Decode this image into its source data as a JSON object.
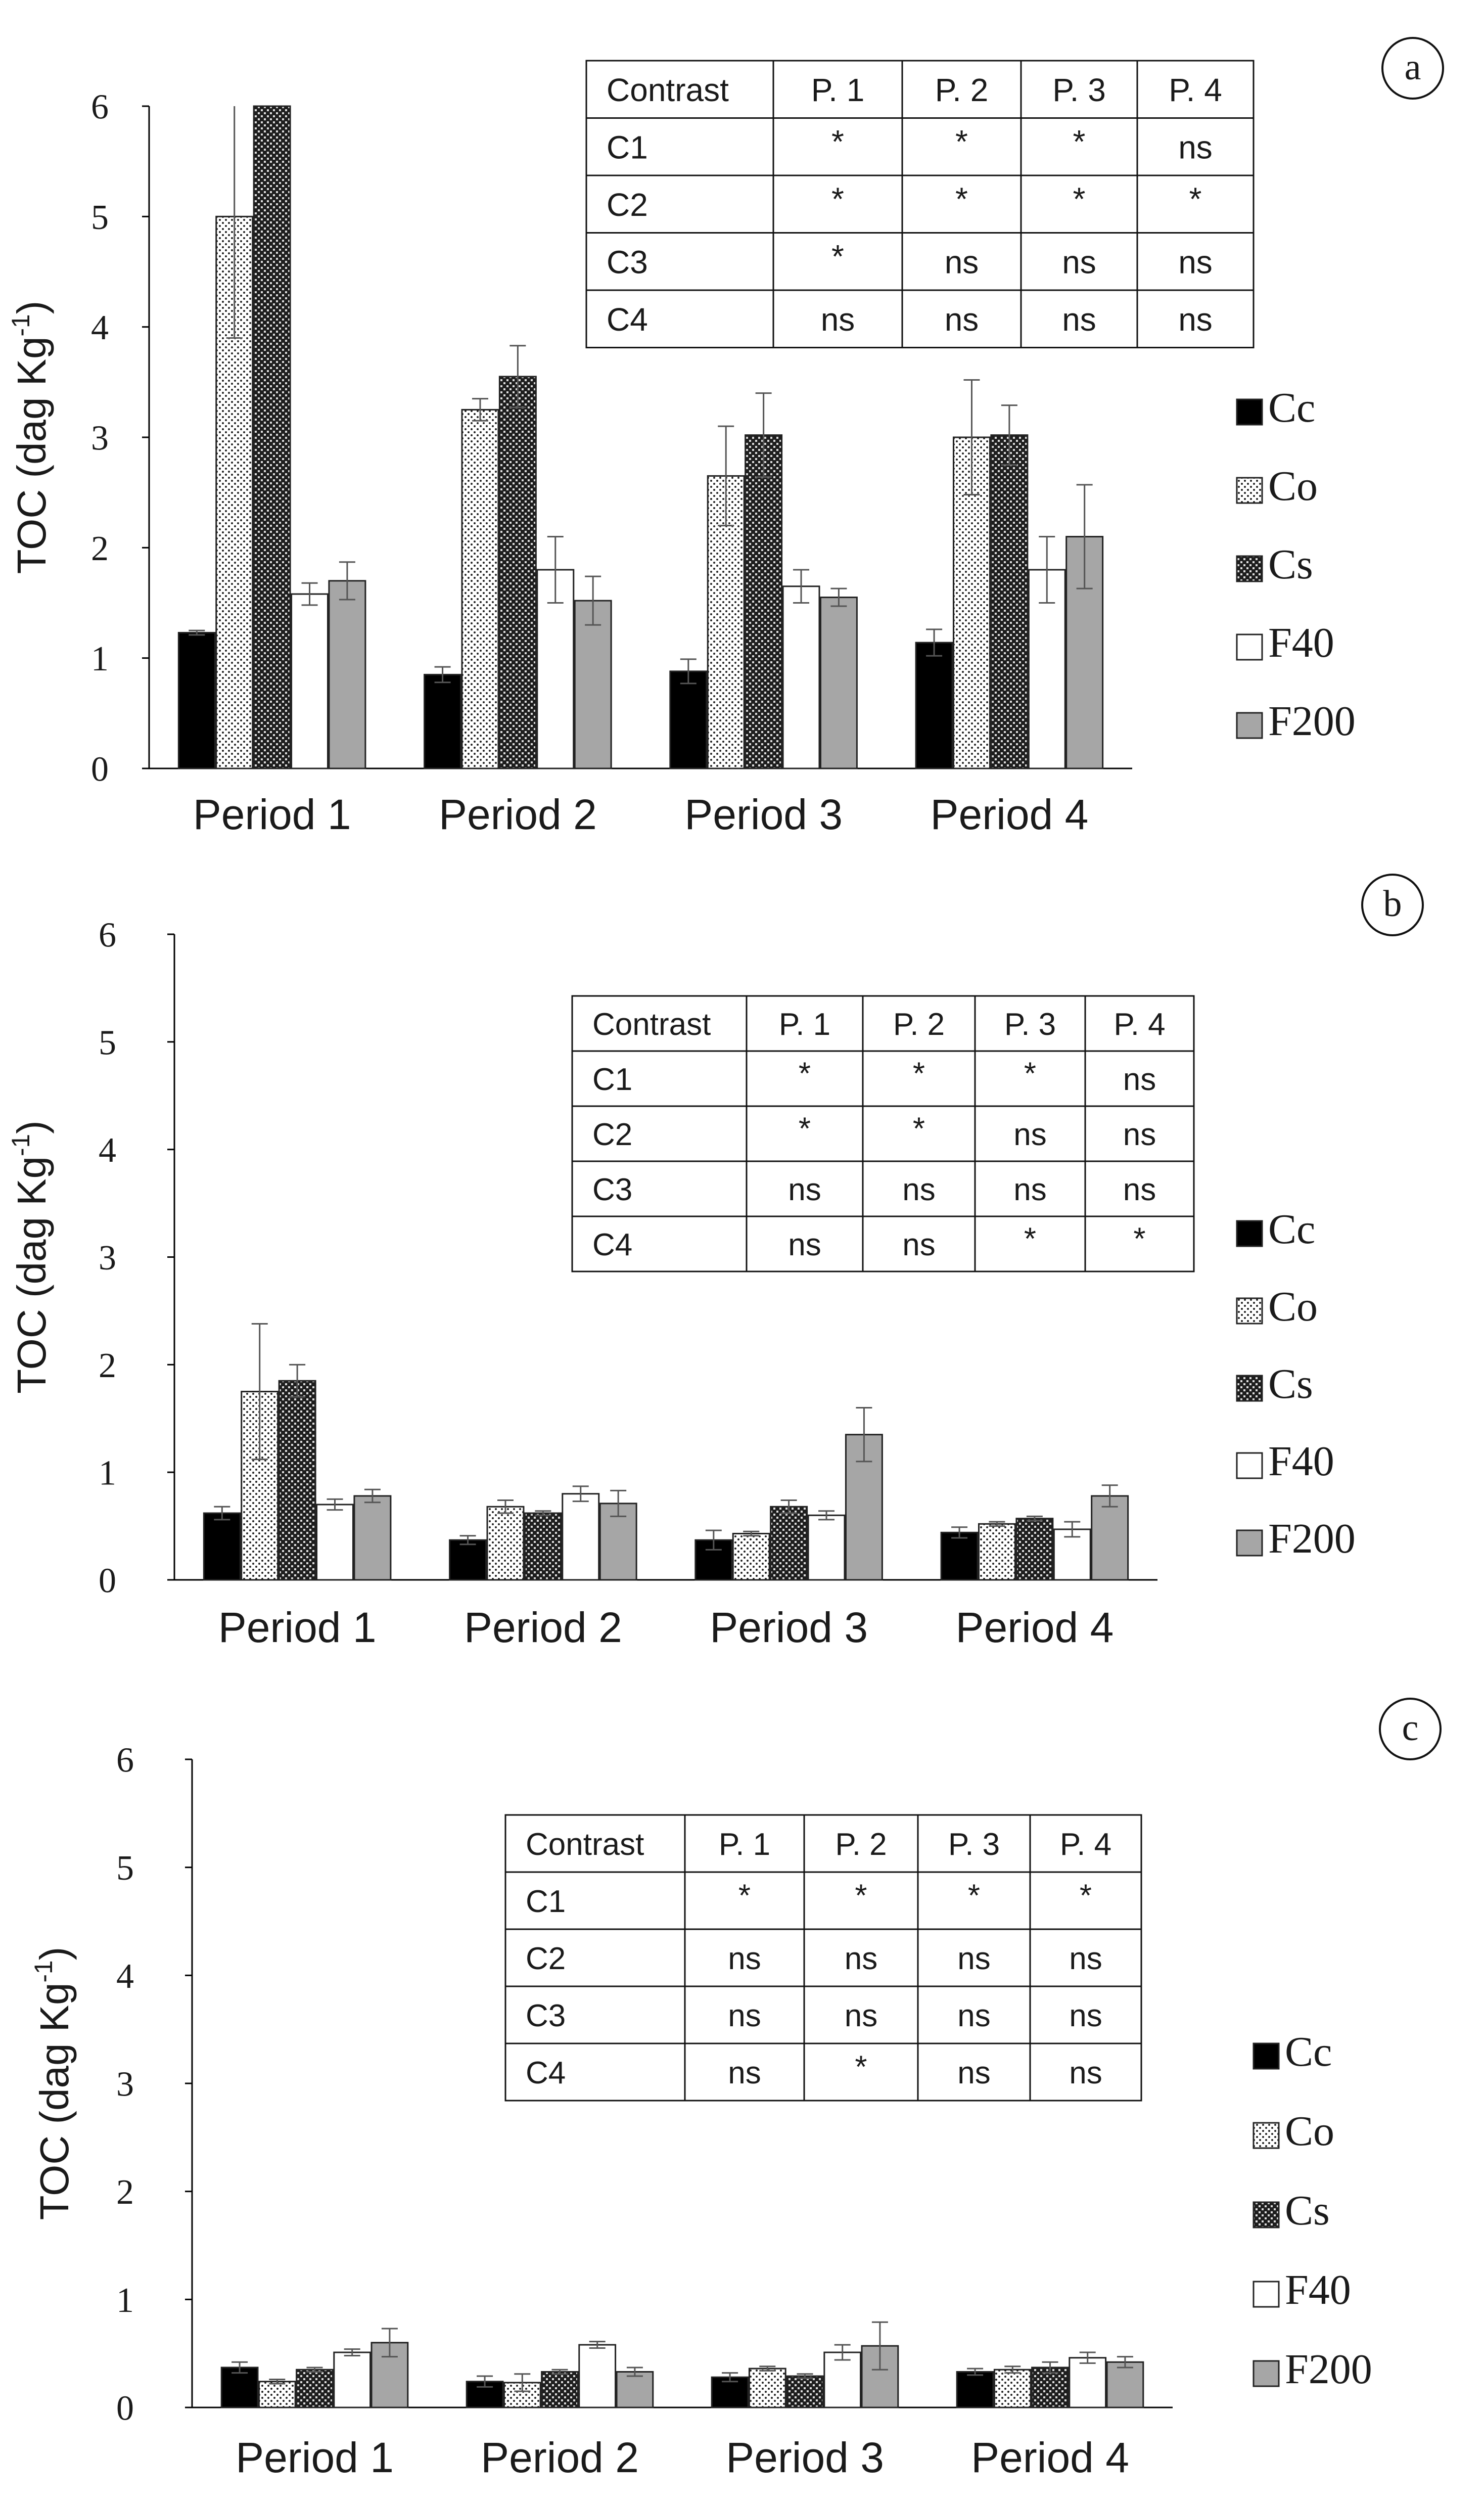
{
  "figure": {
    "ylabel_main": "TOC (dag Kg",
    "ylabel_sup": "-1",
    "legend": [
      {
        "name": "Cc",
        "pattern": "solid-black"
      },
      {
        "name": "Co",
        "pattern": "dotted"
      },
      {
        "name": "Cs",
        "pattern": "checker"
      },
      {
        "name": "F40",
        "pattern": "white"
      },
      {
        "name": "F200",
        "pattern": "gray"
      }
    ],
    "colors": {
      "black": "#000000",
      "gray": "#a6a6a6",
      "white": "#ffffff",
      "text": "#1a1a1a"
    }
  },
  "chart_data": [
    {
      "type": "bar",
      "panel_label": "a",
      "ylabel": "TOC (dag Kg-1)",
      "ylim": [
        0,
        6
      ],
      "yticks": [
        "0",
        "1",
        "2",
        "3",
        "4",
        "5",
        "6"
      ],
      "categories": [
        "Period 1",
        "Period 2",
        "Period 3",
        "Period 4"
      ],
      "series": [
        {
          "name": "Cc",
          "values": [
            1.23,
            0.85,
            0.88,
            1.14
          ],
          "errors": [
            0.02,
            0.07,
            0.11,
            0.12
          ]
        },
        {
          "name": "Co",
          "values": [
            5.0,
            3.25,
            2.65,
            3.0
          ],
          "errors": [
            1.1,
            0.1,
            0.45,
            0.52
          ]
        },
        {
          "name": "Cs",
          "values": [
            6.0,
            3.55,
            3.02,
            3.02
          ],
          "errors": [
            0.0,
            0.28,
            0.38,
            0.27
          ]
        },
        {
          "name": "F40",
          "values": [
            1.58,
            1.8,
            1.65,
            1.8
          ],
          "errors": [
            0.1,
            0.3,
            0.15,
            0.3
          ]
        },
        {
          "name": "F200",
          "values": [
            1.7,
            1.52,
            1.55,
            2.1
          ],
          "errors": [
            0.17,
            0.22,
            0.08,
            0.47
          ]
        }
      ],
      "table": {
        "header": [
          "Contrast",
          "P. 1",
          "P. 2",
          "P. 3",
          "P. 4"
        ],
        "rows": [
          [
            "C1",
            "*",
            "*",
            "*",
            "ns"
          ],
          [
            "C2",
            "*",
            "*",
            "*",
            "*"
          ],
          [
            "C3",
            "*",
            "ns",
            "ns",
            "ns"
          ],
          [
            "C4",
            "ns",
            "ns",
            "ns",
            "ns"
          ]
        ]
      }
    },
    {
      "type": "bar",
      "panel_label": "b",
      "ylabel": "TOC (dag Kg-1)",
      "ylim": [
        0,
        6
      ],
      "yticks": [
        "0",
        "1",
        "2",
        "3",
        "4",
        "5",
        "6"
      ],
      "categories": [
        "Period 1",
        "Period 2",
        "Period 3",
        "Period 4"
      ],
      "series": [
        {
          "name": "Cc",
          "values": [
            0.62,
            0.37,
            0.37,
            0.44
          ],
          "errors": [
            0.06,
            0.04,
            0.09,
            0.05
          ]
        },
        {
          "name": "Co",
          "values": [
            1.75,
            0.68,
            0.43,
            0.52
          ],
          "errors": [
            0.63,
            0.06,
            0.02,
            0.02
          ]
        },
        {
          "name": "Cs",
          "values": [
            1.85,
            0.62,
            0.68,
            0.57
          ],
          "errors": [
            0.15,
            0.02,
            0.06,
            0.02
          ]
        },
        {
          "name": "F40",
          "values": [
            0.7,
            0.8,
            0.6,
            0.47
          ],
          "errors": [
            0.05,
            0.07,
            0.04,
            0.07
          ]
        },
        {
          "name": "F200",
          "values": [
            0.78,
            0.71,
            1.35,
            0.78
          ],
          "errors": [
            0.06,
            0.12,
            0.25,
            0.1
          ]
        }
      ],
      "table": {
        "header": [
          "Contrast",
          "P. 1",
          "P. 2",
          "P. 3",
          "P. 4"
        ],
        "rows": [
          [
            "C1",
            "*",
            "*",
            "*",
            "ns"
          ],
          [
            "C2",
            "*",
            "*",
            "ns",
            "ns"
          ],
          [
            "C3",
            "ns",
            "ns",
            "ns",
            "ns"
          ],
          [
            "C4",
            "ns",
            "ns",
            "*",
            "*"
          ]
        ]
      }
    },
    {
      "type": "bar",
      "panel_label": "c",
      "ylabel": "TOC (dag Kg-1)",
      "ylim": [
        0,
        6
      ],
      "yticks": [
        "0",
        "1",
        "2",
        "3",
        "4",
        "5",
        "6"
      ],
      "categories": [
        "Period 1",
        "Period 2",
        "Period 3",
        "Period 4"
      ],
      "series": [
        {
          "name": "Cc",
          "values": [
            0.37,
            0.24,
            0.28,
            0.33
          ],
          "errors": [
            0.05,
            0.05,
            0.04,
            0.03
          ]
        },
        {
          "name": "Co",
          "values": [
            0.24,
            0.23,
            0.36,
            0.35
          ],
          "errors": [
            0.02,
            0.08,
            0.02,
            0.03
          ]
        },
        {
          "name": "Cs",
          "values": [
            0.35,
            0.33,
            0.29,
            0.37
          ],
          "errors": [
            0.02,
            0.02,
            0.02,
            0.05
          ]
        },
        {
          "name": "F40",
          "values": [
            0.51,
            0.58,
            0.51,
            0.46
          ],
          "errors": [
            0.03,
            0.03,
            0.07,
            0.05
          ]
        },
        {
          "name": "F200",
          "values": [
            0.6,
            0.33,
            0.57,
            0.42
          ],
          "errors": [
            0.13,
            0.04,
            0.22,
            0.05
          ]
        }
      ],
      "table": {
        "header": [
          "Contrast",
          "P. 1",
          "P. 2",
          "P. 3",
          "P. 4"
        ],
        "rows": [
          [
            "C1",
            "*",
            "*",
            "*",
            "*"
          ],
          [
            "C2",
            "ns",
            "ns",
            "ns",
            "ns"
          ],
          [
            "C3",
            "ns",
            "ns",
            "ns",
            "ns"
          ],
          [
            "C4",
            "ns",
            "*",
            "ns",
            "ns"
          ]
        ]
      }
    }
  ]
}
